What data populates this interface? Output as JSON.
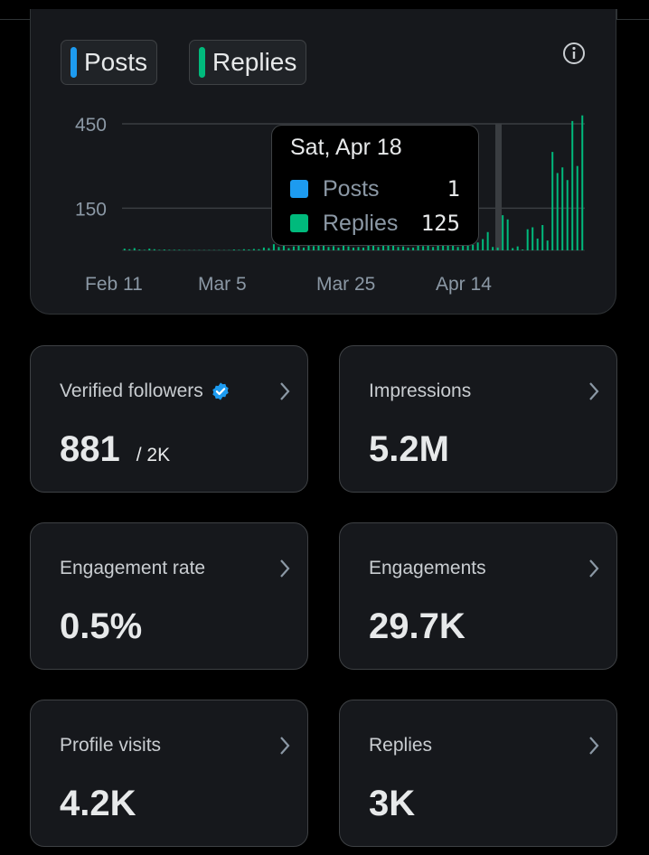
{
  "legend": {
    "posts_label": "Posts",
    "replies_label": "Replies",
    "posts_color": "#1d9bf0",
    "replies_color": "#00ba7c"
  },
  "tooltip": {
    "date": "Sat, Apr 18",
    "posts_label": "Posts",
    "posts_value": "1",
    "replies_label": "Replies",
    "replies_value": "125"
  },
  "chart_data": {
    "type": "bar",
    "y_ticks": [
      "450",
      "150"
    ],
    "x_tick_labels": [
      "Feb 11",
      "Mar 5",
      "Mar 25",
      "Apr 14"
    ],
    "ylim": [
      0,
      520
    ],
    "series": [
      {
        "name": "Posts",
        "color": "#1d9bf0"
      },
      {
        "name": "Replies",
        "color": "#00ba7c",
        "values": [
          6,
          4,
          8,
          3,
          2,
          6,
          4,
          2,
          3,
          2,
          2,
          2,
          0,
          0,
          0,
          0,
          0,
          0,
          0,
          0,
          0,
          0,
          3,
          2,
          4,
          3,
          5,
          4,
          10,
          8,
          22,
          12,
          32,
          8,
          14,
          16,
          10,
          20,
          15,
          18,
          22,
          12,
          15,
          10,
          18,
          14,
          10,
          12,
          10,
          20,
          16,
          12,
          16,
          18,
          22,
          12,
          14,
          10,
          10,
          18,
          15,
          20,
          12,
          20,
          22,
          26,
          30,
          12,
          22,
          30,
          20,
          28,
          40,
          65,
          12,
          10,
          125,
          110,
          8,
          14,
          3,
          75,
          82,
          42,
          90,
          35,
          350,
          275,
          295,
          250,
          460,
          300,
          480
        ]
      }
    ]
  },
  "stats": [
    {
      "label": "Verified followers",
      "value": "881",
      "sub": "/ 2K",
      "verified": true
    },
    {
      "label": "Impressions",
      "value": "5.2M"
    },
    {
      "label": "Engagement rate",
      "value": "0.5%"
    },
    {
      "label": "Engagements",
      "value": "29.7K"
    },
    {
      "label": "Profile visits",
      "value": "4.2K"
    },
    {
      "label": "Replies",
      "value": "3K"
    }
  ]
}
